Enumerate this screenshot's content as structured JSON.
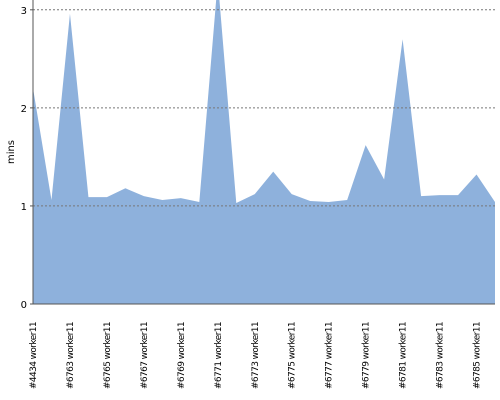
{
  "chart_data": {
    "type": "area",
    "y_label": "mins",
    "categories": [
      "#4434 worker11",
      null,
      "#6763 worker11",
      null,
      "#6765 worker11",
      null,
      "#6767 worker11",
      null,
      "#6769 worker11",
      null,
      "#6771 worker11",
      null,
      "#6773 worker11",
      null,
      "#6775 worker11",
      null,
      "#6777 worker11",
      null,
      "#6779 worker11",
      null,
      "#6781 worker11",
      null,
      "#6783 worker11",
      null,
      "#6785 worker11",
      null
    ],
    "values": [
      2.2,
      1.06,
      2.96,
      1.09,
      1.09,
      1.18,
      1.1,
      1.06,
      1.08,
      1.04,
      3.3,
      1.03,
      1.12,
      1.35,
      1.12,
      1.05,
      1.04,
      1.06,
      1.62,
      1.27,
      2.7,
      1.1,
      1.11,
      1.11,
      1.32,
      1.04
    ],
    "color": "#8eb1dc",
    "ylim": [
      0,
      3.1
    ],
    "yticks": [
      0,
      1,
      2,
      3
    ],
    "grid": true
  }
}
